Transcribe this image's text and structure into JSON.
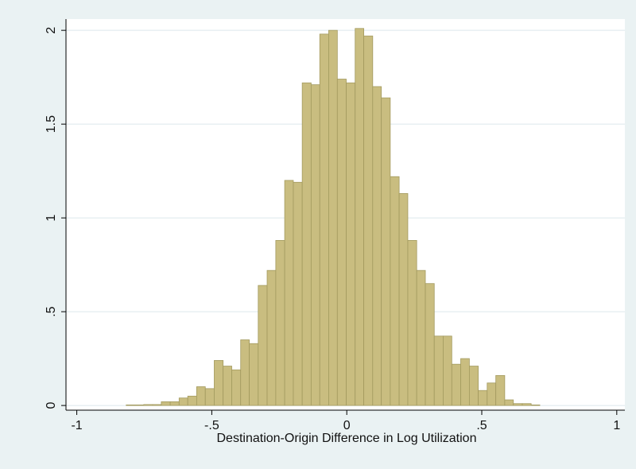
{
  "chart_data": {
    "type": "histogram",
    "xlabel": "Destination-Origin Difference in Log Utilization",
    "bins": [
      -0.817,
      -0.784,
      -0.752,
      -0.719,
      -0.687,
      -0.654,
      -0.621,
      -0.589,
      -0.556,
      -0.524,
      -0.491,
      -0.458,
      -0.426,
      -0.393,
      -0.361,
      -0.328,
      -0.295,
      -0.263,
      -0.23,
      -0.198,
      -0.165,
      -0.132,
      -0.1,
      -0.067,
      -0.035,
      -0.002,
      0.031,
      0.063,
      0.096,
      0.128,
      0.161,
      0.194,
      0.226,
      0.259,
      0.291,
      0.324,
      0.357,
      0.389,
      0.422,
      0.454,
      0.487,
      0.52,
      0.552,
      0.585,
      0.617,
      0.65,
      0.683,
      0.715
    ],
    "values": [
      0.003,
      0.003,
      0.005,
      0.005,
      0.02,
      0.02,
      0.04,
      0.05,
      0.1,
      0.09,
      0.24,
      0.21,
      0.19,
      0.35,
      0.33,
      0.64,
      0.72,
      0.88,
      1.2,
      1.19,
      1.72,
      1.71,
      1.98,
      2.0,
      1.74,
      1.72,
      2.01,
      1.97,
      1.7,
      1.64,
      1.22,
      1.13,
      0.88,
      0.72,
      0.65,
      0.37,
      0.37,
      0.22,
      0.25,
      0.21,
      0.08,
      0.12,
      0.16,
      0.03,
      0.01,
      0.01,
      0.003
    ],
    "color": "#c9bd80",
    "edgecolor": "#a39a5f",
    "xlim": [
      -1.04,
      1.03
    ],
    "ylim": [
      -0.025,
      2.06
    ],
    "xticks": [
      -1,
      {
        "value": -0.5,
        "label": "-.5"
      },
      0,
      {
        "value": 0.5,
        "label": ".5"
      },
      1
    ],
    "yticks": [
      0,
      {
        "value": 0.5,
        "label": ".5"
      },
      1,
      1.5,
      2
    ],
    "grid": true
  }
}
